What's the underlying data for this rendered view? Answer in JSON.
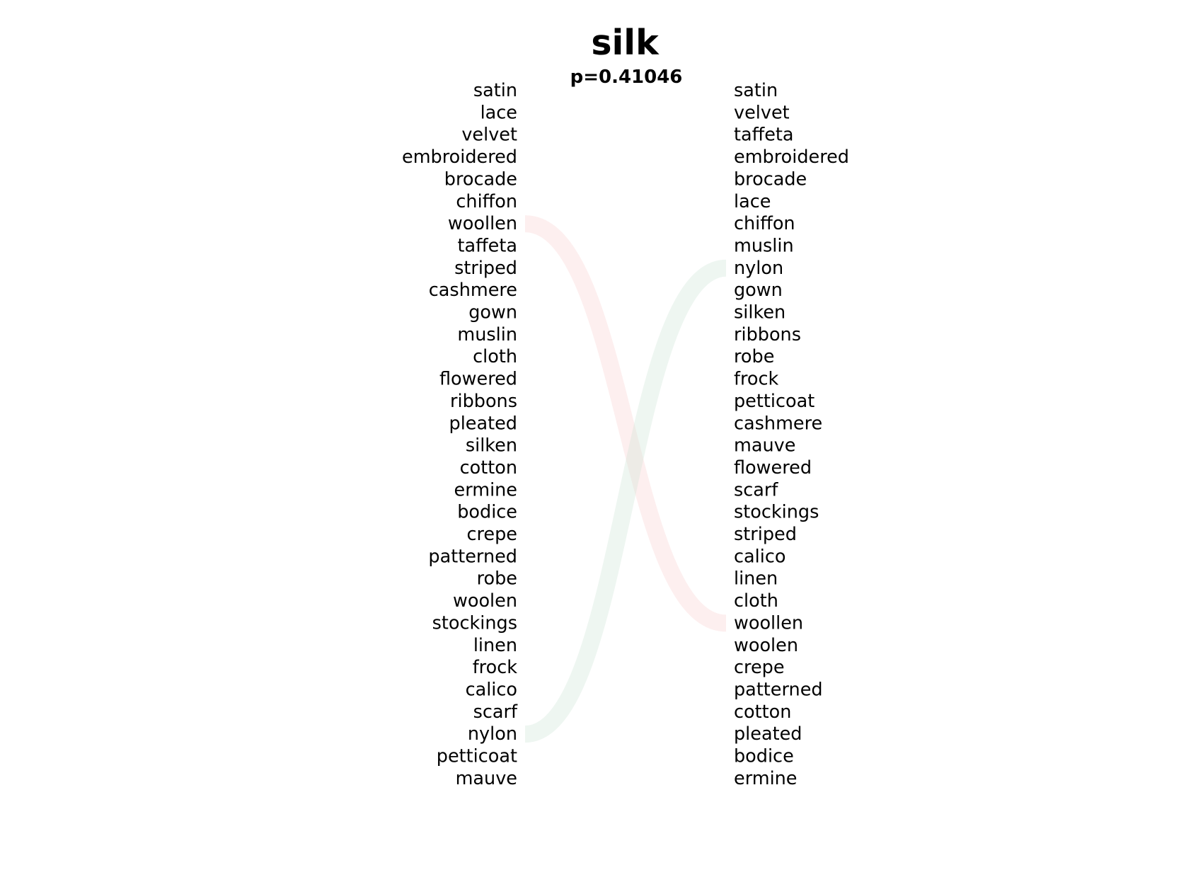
{
  "chart_data": {
    "type": "slope-ranking",
    "title": "silk",
    "subtitle": "p=0.41046",
    "left_ranking": [
      "satin",
      "lace",
      "velvet",
      "embroidered",
      "brocade",
      "chiffon",
      "woollen",
      "taffeta",
      "striped",
      "cashmere",
      "gown",
      "muslin",
      "cloth",
      "flowered",
      "ribbons",
      "pleated",
      "silken",
      "cotton",
      "ermine",
      "bodice",
      "crepe",
      "patterned",
      "robe",
      "woolen",
      "stockings",
      "linen",
      "frock",
      "calico",
      "scarf",
      "nylon",
      "petticoat",
      "mauve"
    ],
    "right_ranking": [
      "satin",
      "velvet",
      "taffeta",
      "embroidered",
      "brocade",
      "lace",
      "chiffon",
      "muslin",
      "nylon",
      "gown",
      "silken",
      "ribbons",
      "robe",
      "frock",
      "petticoat",
      "cashmere",
      "mauve",
      "flowered",
      "scarf",
      "stockings",
      "striped",
      "calico",
      "linen",
      "cloth",
      "woollen",
      "woolen",
      "crepe",
      "patterned",
      "cotton",
      "pleated",
      "bodice",
      "ermine"
    ],
    "links": [
      {
        "word": "woollen",
        "from_rank": 7,
        "to_rank": 25,
        "color": "#f8d0d0"
      },
      {
        "word": "nylon",
        "from_rank": 30,
        "to_rank": 9,
        "color": "#cfe6d8"
      }
    ]
  }
}
